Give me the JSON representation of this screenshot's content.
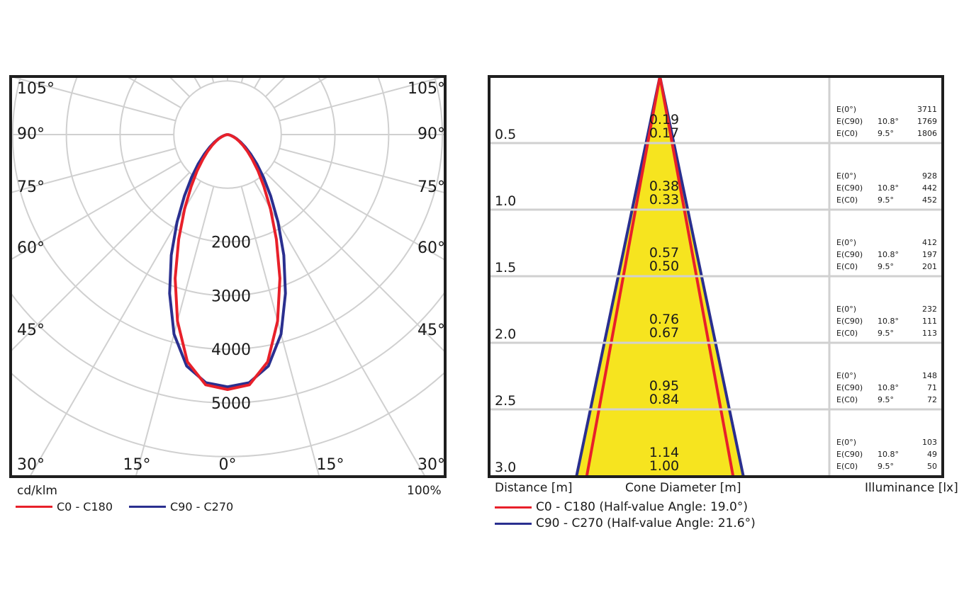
{
  "colors": {
    "c0": "#e8202a",
    "c90": "#2a2f8f",
    "fill": "#f6e41f",
    "grid": "#d0d0d0",
    "frame": "#1e1e1e"
  },
  "polar": {
    "unit_label": "cd/klm",
    "scale_label": "100%",
    "angle_labels_left": [
      "105°",
      "90°",
      "75°",
      "60°",
      "45°",
      "30°"
    ],
    "angle_labels_right": [
      "105°",
      "90°",
      "75°",
      "60°",
      "45°",
      "30°"
    ],
    "bottom_labels": [
      "15°",
      "0°",
      "15°"
    ],
    "radial_labels": [
      "2000",
      "3000",
      "4000",
      "5000"
    ],
    "legend": [
      {
        "label": "C0 - C180"
      },
      {
        "label": "C90 - C270"
      }
    ]
  },
  "cone": {
    "xlabel": "Distance [m]",
    "center_label": "Cone Diameter [m]",
    "right_label": "Illuminance [lx]",
    "legend": [
      {
        "label": "C0 - C180 (Half-value Angle: 19.0°)"
      },
      {
        "label": "C90 - C270 (Half-value Angle: 21.6°)"
      }
    ],
    "rows": [
      {
        "distance": "0.5",
        "d_c90": "0.19",
        "d_c0": "0.17",
        "e0": "3711",
        "ec90": "1769",
        "ec0": "1806"
      },
      {
        "distance": "1.0",
        "d_c90": "0.38",
        "d_c0": "0.33",
        "e0": "928",
        "ec90": "442",
        "ec0": "452"
      },
      {
        "distance": "1.5",
        "d_c90": "0.57",
        "d_c0": "0.50",
        "e0": "412",
        "ec90": "197",
        "ec0": "201"
      },
      {
        "distance": "2.0",
        "d_c90": "0.76",
        "d_c0": "0.67",
        "e0": "232",
        "ec90": "111",
        "ec0": "113"
      },
      {
        "distance": "2.5",
        "d_c90": "0.95",
        "d_c0": "0.84",
        "e0": "148",
        "ec90": "71",
        "ec0": "72"
      },
      {
        "distance": "3.0",
        "d_c90": "1.14",
        "d_c0": "1.00",
        "e0": "103",
        "ec90": "49",
        "ec0": "50"
      }
    ],
    "labels": {
      "e0": "E(0°)",
      "ec90": "E(C90)",
      "ec0": "E(C0)",
      "ang_c90": "10.8°",
      "ang_c0": "9.5°"
    }
  },
  "chart_data": [
    {
      "type": "line",
      "subtype": "polar-luminous-intensity",
      "unit": "cd/klm",
      "angles_deg": [
        0,
        5,
        10,
        15,
        20,
        25,
        30,
        35,
        40,
        45,
        50,
        55,
        60,
        65,
        70,
        75,
        80,
        85,
        90
      ],
      "radial_ticks": [
        2000,
        3000,
        4000,
        5000
      ],
      "series": [
        {
          "name": "C0 - C180",
          "values": [
            4750,
            4680,
            4300,
            3600,
            2850,
            2150,
            1600,
            1180,
            880,
            650,
            480,
            350,
            250,
            170,
            110,
            60,
            30,
            10,
            0
          ]
        },
        {
          "name": "C90 - C270",
          "values": [
            4700,
            4640,
            4380,
            3850,
            3150,
            2480,
            1880,
            1400,
            1040,
            770,
            560,
            400,
            280,
            190,
            120,
            70,
            35,
            12,
            0
          ]
        }
      ]
    },
    {
      "type": "table",
      "subtype": "cone-diagram",
      "columns": [
        "Distance [m]",
        "Cone Diameter C90 [m]",
        "Cone Diameter C0 [m]",
        "E(0°) [lx]",
        "E(C90) [lx]",
        "E(C0) [lx]"
      ],
      "rows": [
        [
          0.5,
          0.19,
          0.17,
          3711,
          1769,
          1806
        ],
        [
          1.0,
          0.38,
          0.33,
          928,
          442,
          452
        ],
        [
          1.5,
          0.57,
          0.5,
          412,
          197,
          201
        ],
        [
          2.0,
          0.76,
          0.67,
          232,
          111,
          113
        ],
        [
          2.5,
          0.95,
          0.84,
          148,
          71,
          72
        ],
        [
          3.0,
          1.14,
          1.0,
          103,
          49,
          50
        ]
      ],
      "half_value_angles": {
        "C0 - C180": 19.0,
        "C90 - C270": 21.6
      }
    }
  ]
}
